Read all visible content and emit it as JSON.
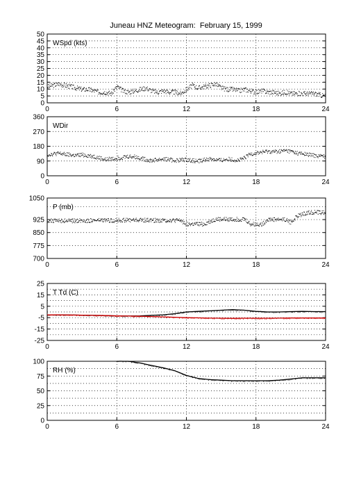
{
  "figure": {
    "title": "Juneau HNZ Meteogram:  February 15, 1999"
  },
  "chart_data": [
    {
      "type": "scatter",
      "label": "WSpd (kts)",
      "ylim": [
        0,
        50
      ],
      "yticks": [
        0,
        5,
        10,
        15,
        20,
        25,
        30,
        35,
        40,
        45,
        50
      ],
      "xlim": [
        0,
        24
      ],
      "xticks": [
        0,
        6,
        12,
        18,
        24
      ],
      "grid": true,
      "series": [
        {
          "color": "#000000",
          "x": [
            0,
            0.5,
            1,
            1.5,
            2,
            2.5,
            3,
            3.5,
            4,
            4.5,
            5,
            5.5,
            6,
            6.5,
            7,
            7.5,
            8,
            8.5,
            9,
            9.5,
            10,
            10.5,
            11,
            11.5,
            12,
            12.5,
            13,
            13.5,
            14,
            14.5,
            15,
            15.5,
            16,
            16.5,
            17,
            17.5,
            18,
            18.5,
            19,
            19.5,
            20,
            20.5,
            21,
            21.5,
            22,
            22.5,
            23,
            23.5,
            24
          ],
          "y": [
            12,
            13,
            14,
            13,
            12,
            11,
            10,
            10,
            9,
            8,
            8,
            7,
            12,
            9,
            8,
            9,
            10,
            11,
            9,
            8,
            9,
            8,
            8,
            7,
            10,
            13,
            11,
            12,
            13,
            14,
            11,
            10,
            10,
            9,
            10,
            9,
            8,
            9,
            8,
            8,
            7,
            8,
            7,
            7,
            7,
            7,
            7,
            6,
            5
          ]
        }
      ]
    },
    {
      "type": "scatter",
      "label": "WDir",
      "ylim": [
        0,
        360
      ],
      "yticks": [
        0,
        90,
        180,
        270,
        360
      ],
      "xlim": [
        0,
        24
      ],
      "xticks": [
        0,
        6,
        12,
        18,
        24
      ],
      "grid": true,
      "series": [
        {
          "color": "#000000",
          "x": [
            0,
            0.5,
            1,
            1.5,
            2,
            2.5,
            3,
            3.5,
            4,
            4.5,
            5,
            5.5,
            6,
            6.5,
            7,
            7.5,
            8,
            8.5,
            9,
            9.5,
            10,
            10.5,
            11,
            11.5,
            12,
            12.5,
            13,
            13.5,
            14,
            14.5,
            15,
            15.5,
            16,
            16.5,
            17,
            17.5,
            18,
            18.5,
            19,
            19.5,
            20,
            20.5,
            21,
            21.5,
            22,
            22.5,
            23,
            23.5,
            24
          ],
          "y": [
            130,
            135,
            138,
            132,
            128,
            125,
            130,
            125,
            120,
            110,
            100,
            105,
            110,
            115,
            120,
            118,
            110,
            100,
            95,
            100,
            105,
            100,
            95,
            98,
            100,
            95,
            92,
            98,
            105,
            100,
            95,
            105,
            100,
            95,
            110,
            135,
            140,
            145,
            150,
            148,
            150,
            155,
            150,
            140,
            135,
            130,
            125,
            122,
            120
          ]
        }
      ]
    },
    {
      "type": "scatter",
      "label": "P (mb)",
      "ylim": [
        700,
        1050
      ],
      "yticks": [
        700,
        775,
        850,
        925,
        1050
      ],
      "gridlines": [
        700,
        775,
        850,
        925,
        1000,
        1050
      ],
      "xlim": [
        0,
        24
      ],
      "xticks": [
        0,
        6,
        12,
        18,
        24
      ],
      "grid": true,
      "series": [
        {
          "color": "#000000",
          "x": [
            0,
            0.5,
            1,
            1.5,
            2,
            2.5,
            3,
            3.5,
            4,
            4.5,
            5,
            5.5,
            6,
            6.5,
            7,
            7.5,
            8,
            8.5,
            9,
            9.5,
            10,
            10.5,
            11,
            11.5,
            12,
            12.5,
            13,
            13.5,
            14,
            14.5,
            15,
            15.5,
            16,
            16.5,
            17,
            17.5,
            18,
            18.5,
            19,
            19.5,
            20,
            20.5,
            21,
            21.5,
            22,
            22.5,
            23,
            23.5,
            24
          ],
          "y": [
            920,
            920,
            920,
            920,
            920,
            920,
            921,
            921,
            921,
            922,
            922,
            922,
            923,
            923,
            924,
            924,
            924,
            923,
            923,
            922,
            922,
            922,
            921,
            921,
            900,
            900,
            900,
            900,
            915,
            928,
            928,
            928,
            928,
            928,
            929,
            900,
            900,
            900,
            928,
            928,
            928,
            928,
            910,
            945,
            960,
            968,
            970,
            968,
            965
          ]
        }
      ]
    },
    {
      "type": "line",
      "label": "T Td (C)",
      "ylim": [
        -25,
        25
      ],
      "yticks": [
        -25,
        -15,
        -5,
        5,
        15,
        25
      ],
      "gridlines": [
        -25,
        -20,
        -15,
        -10,
        -5,
        0,
        5,
        10,
        15,
        20,
        25
      ],
      "xlim": [
        0,
        24
      ],
      "xticks": [
        0,
        6,
        12,
        18,
        24
      ],
      "grid": true,
      "series": [
        {
          "color": "#000000",
          "x": [
            0,
            1,
            2,
            3,
            4,
            5,
            6,
            7,
            8,
            9,
            10,
            11,
            12,
            13,
            14,
            15,
            16,
            17,
            18,
            19,
            20,
            21,
            22,
            23,
            24
          ],
          "y": [
            -2.5,
            -2.5,
            -2.7,
            -2.8,
            -3,
            -3.2,
            -3.5,
            -3.6,
            -3.5,
            -3,
            -2.5,
            -1.5,
            0,
            0.5,
            1,
            1.5,
            2,
            1.5,
            0.5,
            0,
            0,
            0.3,
            0.5,
            0.3,
            0.3
          ]
        },
        {
          "color": "#cc0000",
          "x": [
            0,
            1,
            2,
            3,
            4,
            5,
            6,
            7,
            8,
            9,
            10,
            11,
            12,
            13,
            14,
            15,
            16,
            17,
            18,
            19,
            20,
            21,
            22,
            23,
            24
          ],
          "y": [
            -2.5,
            -2.5,
            -2.7,
            -2.8,
            -3,
            -3.2,
            -3.5,
            -3.6,
            -3.8,
            -4,
            -4.3,
            -4.7,
            -5,
            -5.2,
            -5.4,
            -5.5,
            -5.6,
            -5.5,
            -5.5,
            -5.5,
            -5.4,
            -5.3,
            -5.3,
            -5.3,
            -5.3
          ]
        }
      ]
    },
    {
      "type": "line",
      "label": "RH (%)",
      "ylim": [
        0,
        100
      ],
      "yticks": [
        0,
        25,
        50,
        75,
        100
      ],
      "gridlines": [
        0,
        12.5,
        25,
        37.5,
        50,
        62.5,
        75,
        87.5,
        100
      ],
      "xlim": [
        0,
        24
      ],
      "xticks": [
        0,
        6,
        12,
        18,
        24
      ],
      "grid": true,
      "series": [
        {
          "color": "#000000",
          "x": [
            6,
            7,
            8,
            9,
            10,
            11,
            12,
            13,
            14,
            15,
            16,
            17,
            18,
            19,
            20,
            21,
            22,
            23,
            24
          ],
          "y": [
            100,
            100,
            97,
            93,
            89,
            84,
            76,
            71,
            69,
            68,
            67,
            67,
            67,
            67,
            68,
            70,
            72,
            72,
            72
          ]
        }
      ]
    }
  ]
}
